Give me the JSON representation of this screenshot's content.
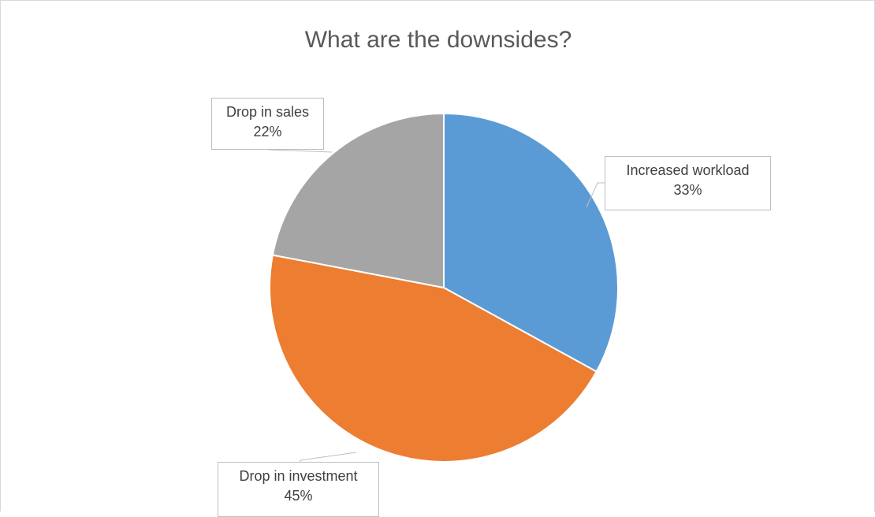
{
  "chart_data": {
    "type": "pie",
    "title": "What are the downsides?",
    "slices": [
      {
        "label": "Increased workload",
        "value": 33,
        "value_label": "33%",
        "color": "#5b9bd5"
      },
      {
        "label": "Drop in investment",
        "value": 45,
        "value_label": "45%",
        "color": "#ed7d31"
      },
      {
        "label": "Drop in sales",
        "value": 22,
        "value_label": "22%",
        "color": "#a5a5a5"
      }
    ],
    "start_angle": "12 o'clock",
    "direction": "clockwise",
    "data_labels": "callout boxes with category name and percentage",
    "legend": "none"
  }
}
